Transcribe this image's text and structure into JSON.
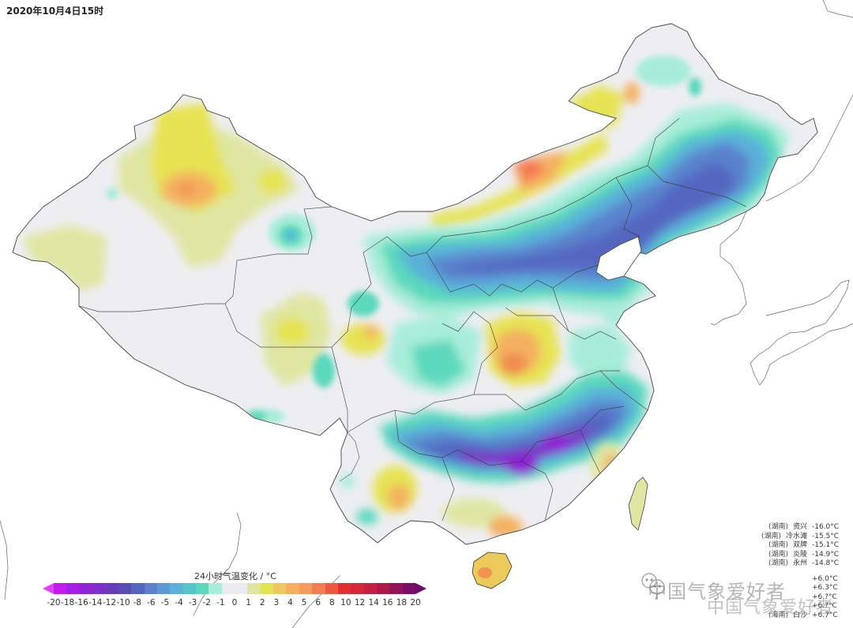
{
  "header": {
    "title": "2020年10月4日15时"
  },
  "legend": {
    "title": "24小时气温变化 / °C",
    "unit": "°C",
    "ticks": [
      "-20",
      "-18",
      "-16",
      "-14",
      "-12",
      "-10",
      "-8",
      "-6",
      "-5",
      "-4",
      "-3",
      "-2",
      "-1",
      "0",
      "1",
      "2",
      "3",
      "4",
      "5",
      "6",
      "8",
      "10",
      "12",
      "14",
      "16",
      "18",
      "20"
    ],
    "colors": [
      "#c619f0",
      "#a41ee8",
      "#8e24d4",
      "#7f30c8",
      "#6a3cb8",
      "#5a4db6",
      "#5566c0",
      "#5a82cc",
      "#5c9ad6",
      "#5ab0d8",
      "#56c4cc",
      "#5cd8bc",
      "#a8edd8",
      "#ececf0",
      "#dfe6a2",
      "#e6e352",
      "#edc85e",
      "#f4b060",
      "#f59b5e",
      "#f47c52",
      "#ee5840",
      "#e03030",
      "#d42838",
      "#c2203e",
      "#ae1a48",
      "#941458",
      "#7a0e6a"
    ],
    "under_color": "#e040fb",
    "over_color": "#6f0d6f"
  },
  "stations": {
    "coldest": [
      {
        "province": "(湖南)",
        "name": "资兴",
        "value": "-16.0°C"
      },
      {
        "province": "(湖南)",
        "name": "冷水滩",
        "value": "-15.5°C"
      },
      {
        "province": "(湖南)",
        "name": "双牌",
        "value": "-15.1°C"
      },
      {
        "province": "(湖南)",
        "name": "炎陵",
        "value": "-14.9°C"
      },
      {
        "province": "(湖南)",
        "name": "永州",
        "value": "-14.8°C"
      }
    ],
    "warmest": [
      {
        "province": "",
        "name": "",
        "value": "+6.0°C"
      },
      {
        "province": "",
        "name": "",
        "value": "+6.3°C"
      },
      {
        "province": "",
        "name": "",
        "value": "+6.?°C"
      },
      {
        "province": "",
        "name": "",
        "value": "+6.?°C"
      },
      {
        "province": "(海南)",
        "name": "白沙",
        "value": "+6.7°C"
      }
    ]
  },
  "watermark": {
    "text": "中国气象爱好者"
  },
  "map": {
    "background": "#ffffff",
    "land_neutral": "#eeeef2",
    "border_color": "#555555"
  }
}
